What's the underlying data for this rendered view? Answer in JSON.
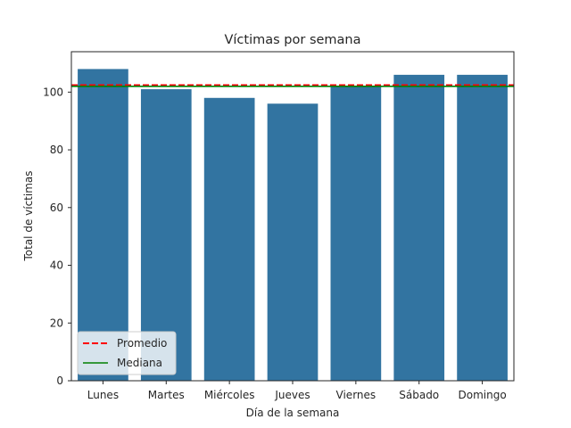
{
  "chart_data": {
    "type": "bar",
    "title": "Víctimas por semana",
    "xlabel": "Día de la semana",
    "ylabel": "Total de víctimas",
    "categories": [
      "Lunes",
      "Martes",
      "Miércoles",
      "Jueves",
      "Viernes",
      "Sábado",
      "Domingo"
    ],
    "values": [
      108,
      101,
      98,
      96,
      102,
      106,
      106
    ],
    "ylim": [
      0,
      114
    ],
    "yticks": [
      "0",
      "20",
      "40",
      "60",
      "80",
      "100"
    ],
    "bar_color": "#3274a1",
    "reference_lines": [
      {
        "name": "Promedio",
        "value": 102.4,
        "color": "#ff0000",
        "style": "dashed"
      },
      {
        "name": "Mediana",
        "value": 102,
        "color": "#008000",
        "style": "solid"
      }
    ],
    "legend": {
      "placement": "lower-left",
      "entries": [
        "Promedio",
        "Mediana"
      ]
    },
    "grid": false
  }
}
